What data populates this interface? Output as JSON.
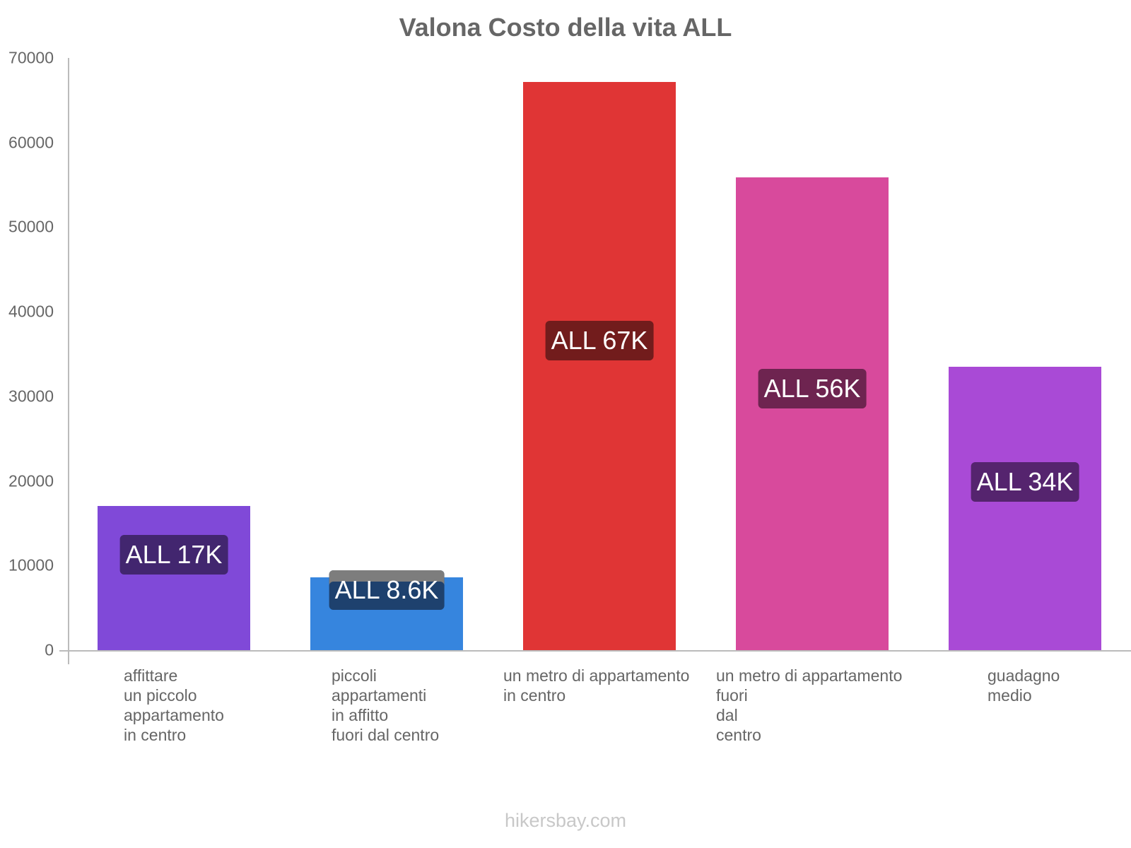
{
  "title": "Valona Costo della vita ALL",
  "footer": "hikersbay.com",
  "y_ticks": [
    "0",
    "10000",
    "20000",
    "30000",
    "40000",
    "50000",
    "60000",
    "70000"
  ],
  "bars": [
    {
      "label": "affittare\nun piccolo\nappartamento\nin centro",
      "value": 17000,
      "value_label": "ALL 17K",
      "color": "#8049d8",
      "label_bg": "#42266f"
    },
    {
      "label": "piccoli\nappartamenti\nin affitto\nfuori dal centro",
      "value": 8600,
      "value_label": "ALL 8.6K",
      "color": "#3685de",
      "label_bg": "#1e416e"
    },
    {
      "label": "un metro di appartamento\nin centro",
      "value": 67200,
      "value_label": "ALL 67K",
      "color": "#e03535",
      "label_bg": "#721c1c"
    },
    {
      "label": "un metro di appartamento\nfuori\ndal\ncentro",
      "value": 55900,
      "value_label": "ALL 56K",
      "color": "#d84a9c",
      "label_bg": "#6e2450"
    },
    {
      "label": "guadagno\nmedio",
      "value": 33500,
      "value_label": "ALL 34K",
      "color": "#a94ad6",
      "label_bg": "#55246e"
    }
  ],
  "chart_data": {
    "type": "bar",
    "title": "Valona Costo della vita ALL",
    "categories": [
      "affittare un piccolo appartamento in centro",
      "piccoli appartamenti in affitto fuori dal centro",
      "un metro di appartamento in centro",
      "un metro di appartamento fuori dal centro",
      "guadagno medio"
    ],
    "values": [
      17000,
      8600,
      67200,
      55900,
      33500
    ],
    "data_labels": [
      "ALL 17K",
      "ALL 8.6K",
      "ALL 67K",
      "ALL 56K",
      "ALL 34K"
    ],
    "colors": [
      "#8049d8",
      "#3685de",
      "#e03535",
      "#d84a9c",
      "#a94ad6"
    ],
    "xlabel": "",
    "ylabel": "",
    "ylim": [
      0,
      70000
    ],
    "y_ticks": [
      0,
      10000,
      20000,
      30000,
      40000,
      50000,
      60000,
      70000
    ],
    "grid": false,
    "legend": "none",
    "source": "hikersbay.com"
  }
}
